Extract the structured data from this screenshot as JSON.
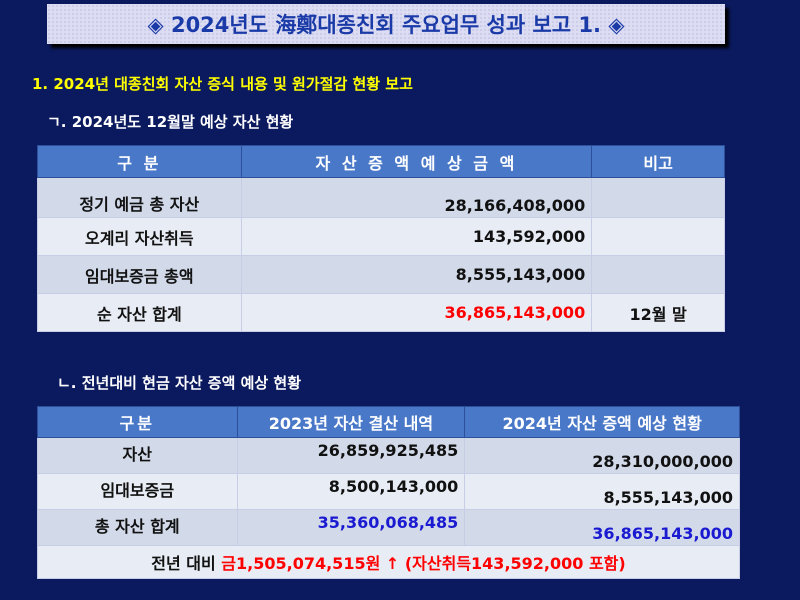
{
  "title": "◈ 2024년도 海鄭대종친회 주요업무 성과 보고 1. ◈",
  "section1": "1. 2024년 대종친회 자산 증식 내용 및 원가절감 현황  보고",
  "sub1": "ㄱ. 2024년도 12월말 예상 자산 현황",
  "table1": {
    "headers": [
      "구  분",
      "자 산 증 액 예 상 금 액",
      "비고"
    ],
    "rows": [
      {
        "label": "정기 예금 총 자산",
        "amount": "28,166,408,000",
        "note": ""
      },
      {
        "label": "오계리 자산취득",
        "amount": "143,592,000",
        "note": ""
      },
      {
        "label": "임대보증금  총액",
        "amount": "8,555,143,000",
        "note": ""
      },
      {
        "label": "순 자산 합계",
        "amount": "36,865,143,000",
        "note": "12월 말"
      }
    ]
  },
  "sub2": "ㄴ. 전년대비 현금 자산 증액 예상 현황",
  "table2": {
    "headers": [
      "구분",
      "2023년 자산 결산 내역",
      "2024년 자산 증액 예상 현황"
    ],
    "rows": [
      {
        "label": "자산",
        "y2023": "26,859,925,485",
        "y2024": "28,310,000,000"
      },
      {
        "label": "임대보증금",
        "y2023": "8,500,143,000",
        "y2024": "8,555,143,000"
      },
      {
        "label": "총 자산 합계",
        "y2023": "35,360,068,485",
        "y2024": "36,865,143,000"
      }
    ],
    "footer_label": "전년 대비 ",
    "footer_amount": "금1,505,074,515원 ↑",
    "footer_note": " (자산취득143,592,000 포함)"
  },
  "colors": {
    "background": "#0b1a5e",
    "header": "#4a78c8",
    "highlight_red": "#ff0000",
    "highlight_blue": "#1a1ad0",
    "section_yellow": "#ffff00"
  }
}
